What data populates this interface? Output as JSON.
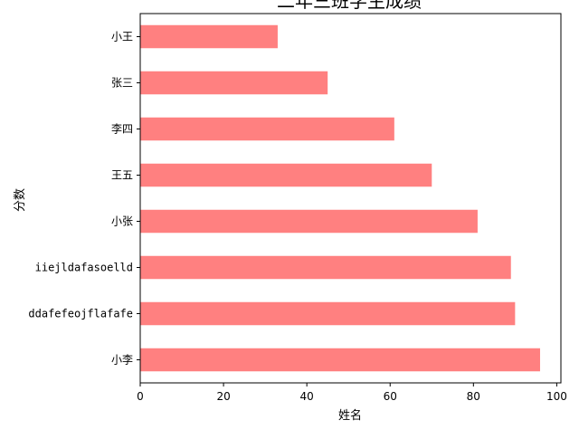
{
  "chart_data": {
    "type": "bar",
    "orientation": "horizontal",
    "title": "二年三班学生成绩",
    "xlabel": "姓名",
    "ylabel": "分数",
    "categories": [
      "小李",
      "ddafefeojflafafe",
      "iiejldafasoelld",
      "小张",
      "王五",
      "李四",
      "张三",
      "小王"
    ],
    "values": [
      96,
      90,
      89,
      81,
      70,
      61,
      45,
      33
    ],
    "xlim": [
      0,
      101
    ],
    "xticks": [
      0,
      20,
      40,
      60,
      80,
      100
    ],
    "bar_color": "#ff8080",
    "grid": false,
    "legend": "none"
  }
}
